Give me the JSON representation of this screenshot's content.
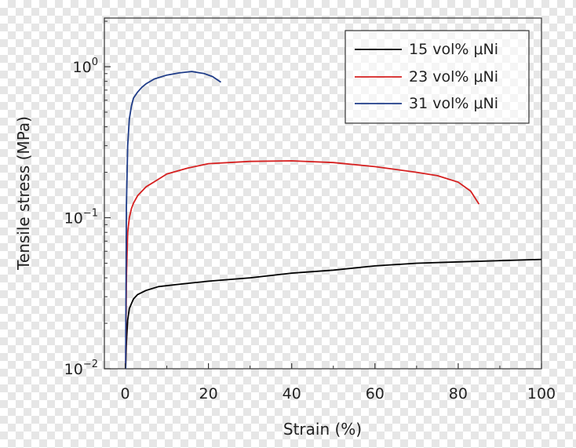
{
  "chart_data": {
    "type": "line",
    "xlabel": "Strain (%)",
    "ylabel": "Tensile stress (MPa)",
    "x_ticks": [
      "0",
      "20",
      "40",
      "60",
      "80",
      "100"
    ],
    "y_ticks": [
      {
        "base": "10",
        "exp": "−2",
        "value": 0.01
      },
      {
        "base": "10",
        "exp": "−1",
        "value": 0.1
      },
      {
        "base": "10",
        "exp": "0",
        "value": 1
      }
    ],
    "xlim": [
      -5,
      100
    ],
    "ylim": [
      0.01,
      2.1
    ],
    "yscale": "log",
    "grid": false,
    "legend_position": "top-right",
    "series": [
      {
        "name": "15 vol% μNi",
        "color": "#000000",
        "x": [
          0.1,
          0.3,
          0.6,
          1,
          1.5,
          2,
          3,
          5,
          8,
          12,
          20,
          30,
          40,
          50,
          60,
          70,
          80,
          90,
          100
        ],
        "y": [
          0.01,
          0.015,
          0.021,
          0.025,
          0.027,
          0.029,
          0.031,
          0.033,
          0.035,
          0.036,
          0.038,
          0.04,
          0.043,
          0.045,
          0.048,
          0.05,
          0.051,
          0.052,
          0.053
        ]
      },
      {
        "name": "23 vol% μNi",
        "color": "#d62020",
        "x": [
          0.1,
          0.3,
          0.6,
          1,
          1.5,
          2,
          3,
          5,
          8,
          10,
          15,
          20,
          30,
          40,
          50,
          60,
          70,
          75,
          80,
          83,
          85
        ],
        "y": [
          0.01,
          0.04,
          0.08,
          0.1,
          0.115,
          0.125,
          0.14,
          0.16,
          0.18,
          0.195,
          0.213,
          0.228,
          0.236,
          0.238,
          0.232,
          0.218,
          0.2,
          0.19,
          0.172,
          0.15,
          0.123
        ]
      },
      {
        "name": "31 vol% μNi",
        "color": "#1f3c88",
        "x": [
          0.1,
          0.3,
          0.6,
          1,
          1.5,
          2,
          3,
          4,
          5,
          7,
          10,
          13,
          16,
          19,
          21,
          23
        ],
        "y": [
          0.01,
          0.12,
          0.3,
          0.45,
          0.55,
          0.62,
          0.68,
          0.73,
          0.77,
          0.83,
          0.88,
          0.91,
          0.93,
          0.9,
          0.86,
          0.79
        ]
      }
    ]
  }
}
